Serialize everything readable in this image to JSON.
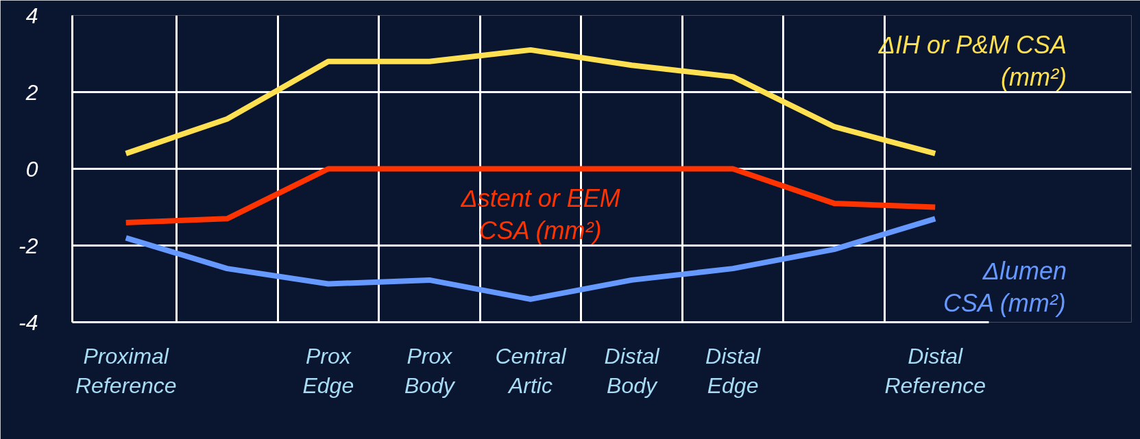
{
  "chart_data": {
    "type": "line",
    "categories": [
      "Proximal\nReference",
      null,
      "Prox\nEdge",
      "Prox\nBody",
      "Central\nArtic",
      "Distal\nBody",
      "Distal\nEdge",
      null,
      "Distal\nReference"
    ],
    "series": [
      {
        "name": "ΔIH or P&M CSA\n(mm²)",
        "color": "#ffe050",
        "values": [
          0.4,
          1.3,
          2.8,
          2.8,
          3.1,
          2.7,
          2.4,
          1.1,
          0.4
        ]
      },
      {
        "name": "Δstent or EEM\nCSA (mm²)",
        "color": "#ff3300",
        "values": [
          -1.4,
          -1.3,
          0,
          0,
          0,
          0,
          0,
          -0.9,
          -1.0
        ]
      },
      {
        "name": "Δlumen\nCSA (mm²)",
        "color": "#6699ff",
        "values": [
          -1.8,
          -2.6,
          -3.0,
          -2.9,
          -3.4,
          -2.9,
          -2.6,
          -2.1,
          -1.3
        ]
      }
    ],
    "ylim": [
      -4,
      4
    ],
    "yticks": [
      {
        "value": -4,
        "label": "-4"
      },
      {
        "value": -2,
        "label": "-2"
      },
      0,
      2,
      4
    ],
    "grid": true,
    "marker": "none",
    "line_style": "solid"
  }
}
